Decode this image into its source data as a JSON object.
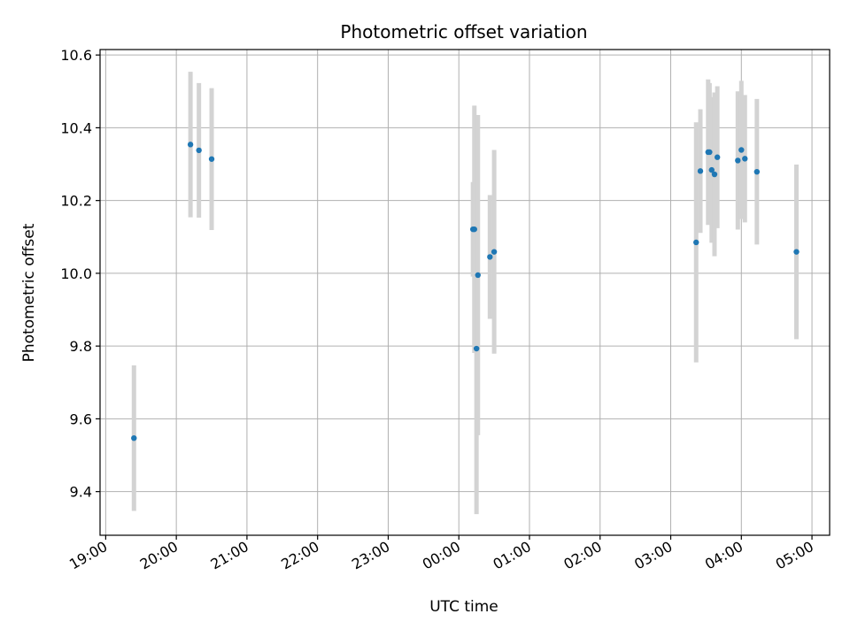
{
  "chart_data": {
    "type": "scatter",
    "title": "Photometric offset variation",
    "xlabel": "UTC time",
    "ylabel": "Photometric offset",
    "x_unit": "hours since 19:00 UTC",
    "xlim": [
      -0.08,
      10.25
    ],
    "ylim": [
      9.28,
      10.615
    ],
    "x_ticks": [
      {
        "x": 0,
        "label": "19:00"
      },
      {
        "x": 1,
        "label": "20:00"
      },
      {
        "x": 2,
        "label": "21:00"
      },
      {
        "x": 3,
        "label": "22:00"
      },
      {
        "x": 4,
        "label": "23:00"
      },
      {
        "x": 5,
        "label": "00:00"
      },
      {
        "x": 6,
        "label": "01:00"
      },
      {
        "x": 7,
        "label": "02:00"
      },
      {
        "x": 8,
        "label": "03:00"
      },
      {
        "x": 9,
        "label": "04:00"
      },
      {
        "x": 10,
        "label": "05:00"
      }
    ],
    "y_ticks": [
      {
        "y": 9.4,
        "label": "9.4"
      },
      {
        "y": 9.6,
        "label": "9.6"
      },
      {
        "y": 9.8,
        "label": "9.8"
      },
      {
        "y": 10.0,
        "label": "10.0"
      },
      {
        "y": 10.2,
        "label": "10.2"
      },
      {
        "y": 10.4,
        "label": "10.4"
      },
      {
        "y": 10.6,
        "label": "10.6"
      }
    ],
    "grid": true,
    "colors": {
      "point": "#1f77b4",
      "errorbar": "#d3d3d3",
      "grid": "#b0b0b0"
    },
    "points": [
      {
        "x": 0.4,
        "y": 9.547,
        "yerr": 0.2
      },
      {
        "x": 1.2,
        "y": 10.354,
        "yerr": 0.2
      },
      {
        "x": 1.32,
        "y": 10.338,
        "yerr": 0.185
      },
      {
        "x": 1.5,
        "y": 10.314,
        "yerr": 0.195
      },
      {
        "x": 5.2,
        "y": 10.121,
        "yerr": 0.13
      },
      {
        "x": 5.22,
        "y": 10.121,
        "yerr": 0.34
      },
      {
        "x": 5.25,
        "y": 9.793,
        "yerr": 0.455
      },
      {
        "x": 5.27,
        "y": 9.995,
        "yerr": 0.44
      },
      {
        "x": 5.44,
        "y": 10.045,
        "yerr": 0.17
      },
      {
        "x": 5.5,
        "y": 10.059,
        "yerr": 0.28
      },
      {
        "x": 8.36,
        "y": 10.085,
        "yerr": 0.33
      },
      {
        "x": 8.42,
        "y": 10.281,
        "yerr": 0.17
      },
      {
        "x": 8.53,
        "y": 10.333,
        "yerr": 0.2
      },
      {
        "x": 8.55,
        "y": 10.333,
        "yerr": 0.19
      },
      {
        "x": 8.58,
        "y": 10.284,
        "yerr": 0.2
      },
      {
        "x": 8.62,
        "y": 10.272,
        "yerr": 0.225
      },
      {
        "x": 8.66,
        "y": 10.319,
        "yerr": 0.195
      },
      {
        "x": 8.95,
        "y": 10.31,
        "yerr": 0.19
      },
      {
        "x": 9.0,
        "y": 10.339,
        "yerr": 0.19
      },
      {
        "x": 9.05,
        "y": 10.315,
        "yerr": 0.175
      },
      {
        "x": 9.22,
        "y": 10.279,
        "yerr": 0.2
      },
      {
        "x": 9.78,
        "y": 10.059,
        "yerr": 0.24
      }
    ]
  }
}
